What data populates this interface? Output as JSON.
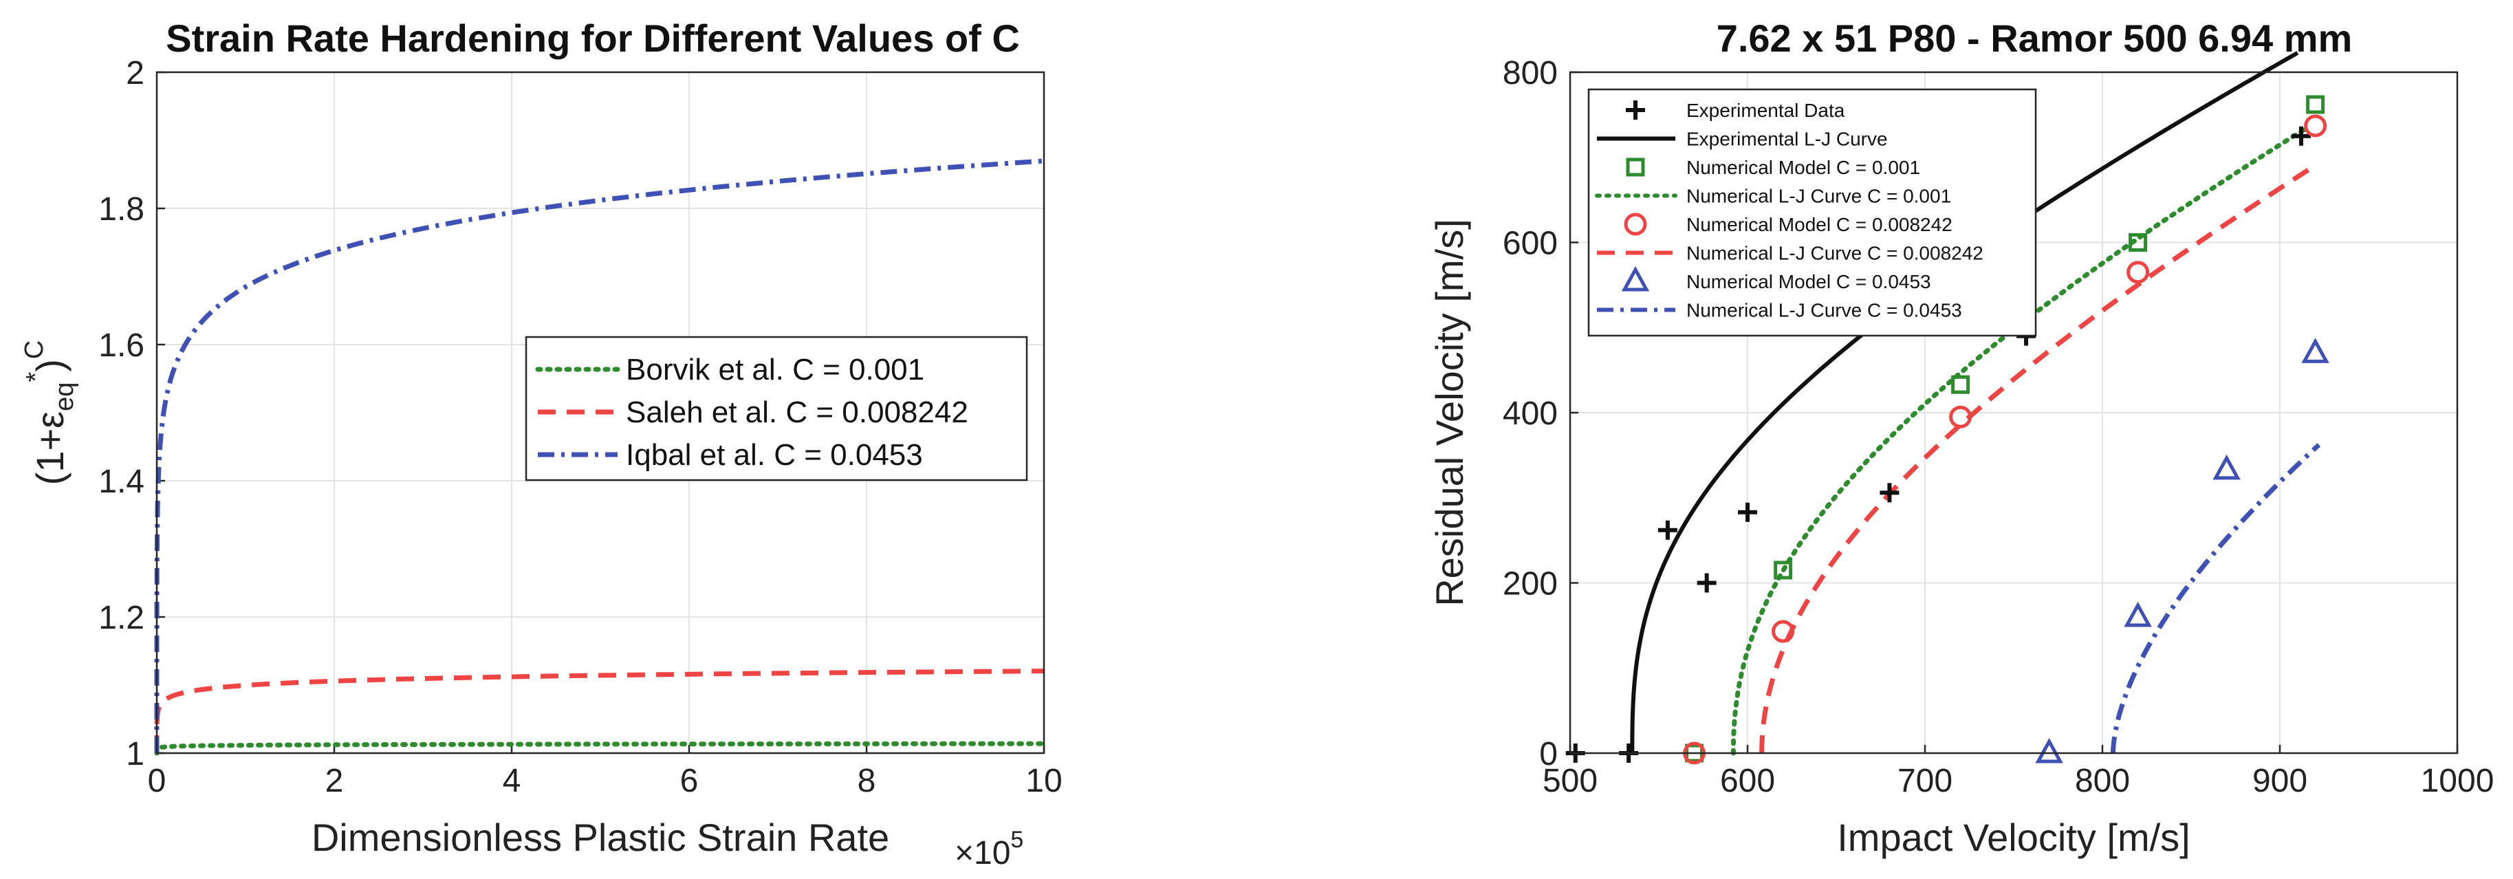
{
  "colors": {
    "green": "#2e8b2e",
    "red": "#ee4444",
    "blue": "#3f51b5",
    "black": "#111111"
  },
  "chart_data": [
    {
      "type": "line",
      "title": "Strain Rate Hardening for Different Values of C",
      "xlabel": "Dimensionless Plastic Strain Rate",
      "x_multiplier": "×10",
      "x_multiplier_exp": "5",
      "ylabel_base": "(1+ε",
      "ylabel_sub": "eq",
      "ylabel_star": "*",
      "ylabel_close": ")",
      "ylabel_sup": "C",
      "xlim": [
        0,
        10
      ],
      "ylim": [
        1,
        2
      ],
      "xticks": [
        0,
        2,
        4,
        6,
        8,
        10
      ],
      "yticks": [
        1,
        1.2,
        1.4,
        1.6,
        1.8,
        2
      ],
      "ytick_labels": [
        "1",
        "1.2",
        "1.4",
        "1.6",
        "1.8",
        "2"
      ],
      "grid": true,
      "legend_position": "center-right",
      "series": [
        {
          "name": "Borvik et al. C = 0.001",
          "C": 0.001,
          "color": "#2e8b2e",
          "style": "dotted"
        },
        {
          "name": "Saleh et al. C = 0.008242",
          "C": 0.008242,
          "color": "#ee4444",
          "style": "dashed"
        },
        {
          "name": "Iqbal et al. C = 0.0453",
          "C": 0.0453,
          "color": "#3f51b5",
          "style": "dashdot"
        }
      ]
    },
    {
      "type": "scatter",
      "title": "7.62 x 51 P80 - Ramor 500 6.94 mm",
      "xlabel": "Impact Velocity [m/s]",
      "ylabel": "Residual Velocity [m/s]",
      "xlim": [
        500,
        1000
      ],
      "ylim": [
        0,
        800
      ],
      "xticks": [
        500,
        600,
        700,
        800,
        900,
        1000
      ],
      "yticks": [
        0,
        200,
        400,
        600,
        800
      ],
      "grid": true,
      "legend_position": "top-left",
      "legend": [
        "Experimental Data",
        "Experimental L-J Curve",
        "Numerical Model C = 0.001",
        "Numerical L-J Curve C = 0.001",
        "Numerical Model C = 0.008242",
        "Numerical L-J Curve C = 0.008242",
        "Numerical Model C = 0.0453",
        "Numerical L-J Curve C = 0.0453"
      ],
      "experimental_points": [
        [
          503,
          0
        ],
        [
          533,
          0
        ],
        [
          555,
          262
        ],
        [
          577,
          200
        ],
        [
          600,
          283
        ],
        [
          680,
          306
        ],
        [
          757,
          490
        ],
        [
          912,
          725
        ]
      ],
      "experimental_curve": {
        "vbl": 535,
        "a": 1,
        "p": 2.7,
        "x_max": 910
      },
      "series": [
        {
          "name": "C = 0.001",
          "marker": "square",
          "color": "#2e8b2e",
          "style": "dotted",
          "points": [
            [
              570,
              0
            ],
            [
              620,
              215
            ],
            [
              720,
              433
            ],
            [
              820,
              600
            ],
            [
              920,
              762
            ]
          ],
          "curve": {
            "vbl": 592,
            "a": 1,
            "p": 2.2,
            "x_max": 916
          }
        },
        {
          "name": "C = 0.008242",
          "marker": "circle",
          "color": "#ee4444",
          "style": "dashed",
          "points": [
            [
              570,
              0
            ],
            [
              620,
              143
            ],
            [
              720,
              395
            ],
            [
              820,
              565
            ],
            [
              920,
              737
            ]
          ],
          "curve": {
            "vbl": 608,
            "a": 1,
            "p": 2.0,
            "x_max": 916
          }
        },
        {
          "name": "C = 0.0453",
          "marker": "triangle",
          "color": "#3f51b5",
          "style": "dashdot",
          "points": [
            [
              770,
              0
            ],
            [
              820,
              160
            ],
            [
              870,
              333
            ],
            [
              920,
              470
            ]
          ],
          "curve": {
            "vbl": 806,
            "a": 1,
            "p": 1.7,
            "x_max": 922
          }
        }
      ]
    }
  ]
}
